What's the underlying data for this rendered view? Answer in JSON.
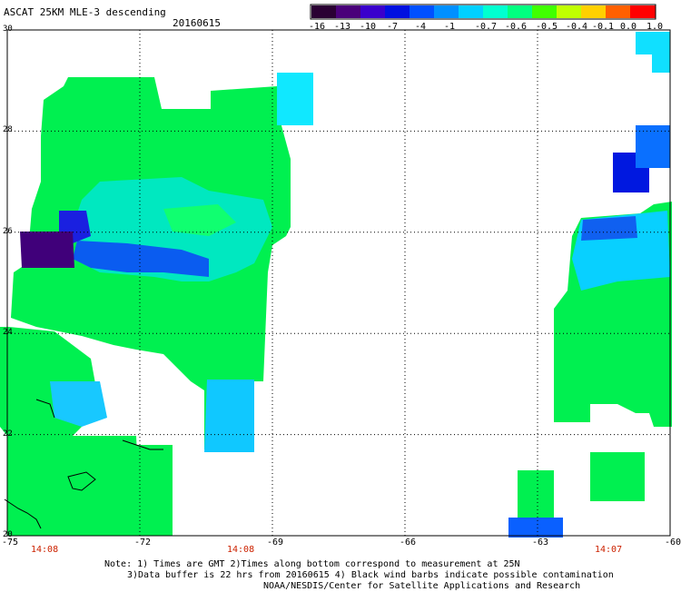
{
  "header": {
    "title": "ASCAT 25KM MLE-3 descending",
    "date": "20160615"
  },
  "colorbar": {
    "labels": [
      "-16",
      "-13",
      "-10",
      "-7",
      "-4",
      "-1",
      "-0.7",
      "-0.6",
      "-0.5",
      "-0.4",
      "-0.1",
      "0.0",
      "1.0"
    ],
    "colors": [
      "#2a0033",
      "#4a007a",
      "#3a00cc",
      "#0010e0",
      "#0050ff",
      "#0090ff",
      "#00d0ff",
      "#00ffd0",
      "#00ff80",
      "#40ff00",
      "#c0ff00",
      "#ffd000",
      "#ff6000",
      "#ff0000"
    ]
  },
  "axes": {
    "y_labels": [
      "30",
      "28",
      "26",
      "24",
      "22",
      "20"
    ],
    "x_labels": [
      "-75",
      "-72",
      "-69",
      "-66",
      "-63",
      "-60"
    ]
  },
  "times": [
    "14:08",
    "14:08",
    "14:07"
  ],
  "notes": {
    "line1": "Note: 1) Times are GMT 2)Times along bottom correspond to measurement at 25N",
    "line2": "3)Data buffer is 22 hrs from 20160615 4) Black wind barbs indicate possible contamination",
    "line3": "NOAA/NESDIS/Center for Satellite Applications and Research"
  },
  "map": {
    "lon_range": [
      -75,
      -60
    ],
    "lat_range": [
      20,
      30
    ],
    "grid": true
  }
}
